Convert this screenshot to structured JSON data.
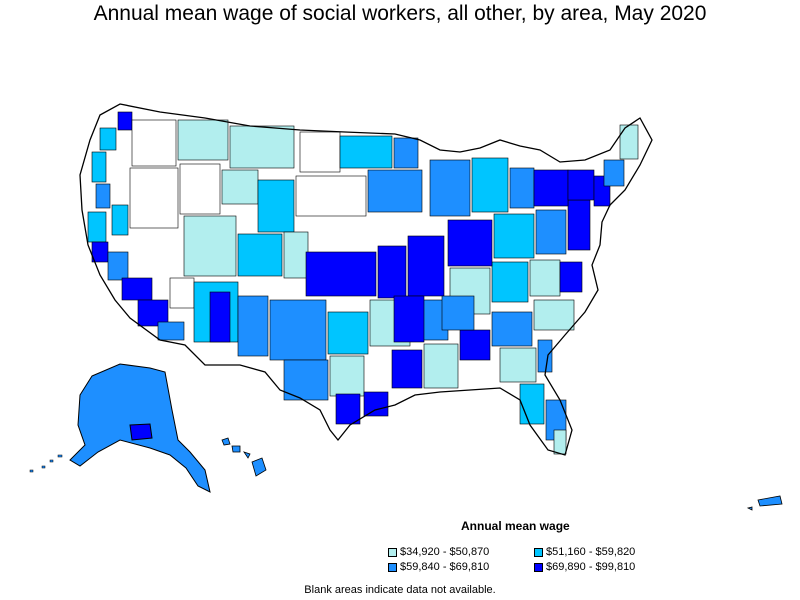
{
  "title": "Annual mean wage of social workers, all other, by area, May 2020",
  "legend": {
    "title": "Annual mean wage",
    "items": [
      {
        "label": "$34,920 - $50,870",
        "color": "#b2eeee"
      },
      {
        "label": "$51,160 - $59,820",
        "color": "#00c5ff"
      },
      {
        "label": "$59,840 - $69,810",
        "color": "#1e8fff"
      },
      {
        "label": "$69,890 - $99,810",
        "color": "#0000ff"
      }
    ]
  },
  "footnote": "Blank areas indicate data not available."
}
